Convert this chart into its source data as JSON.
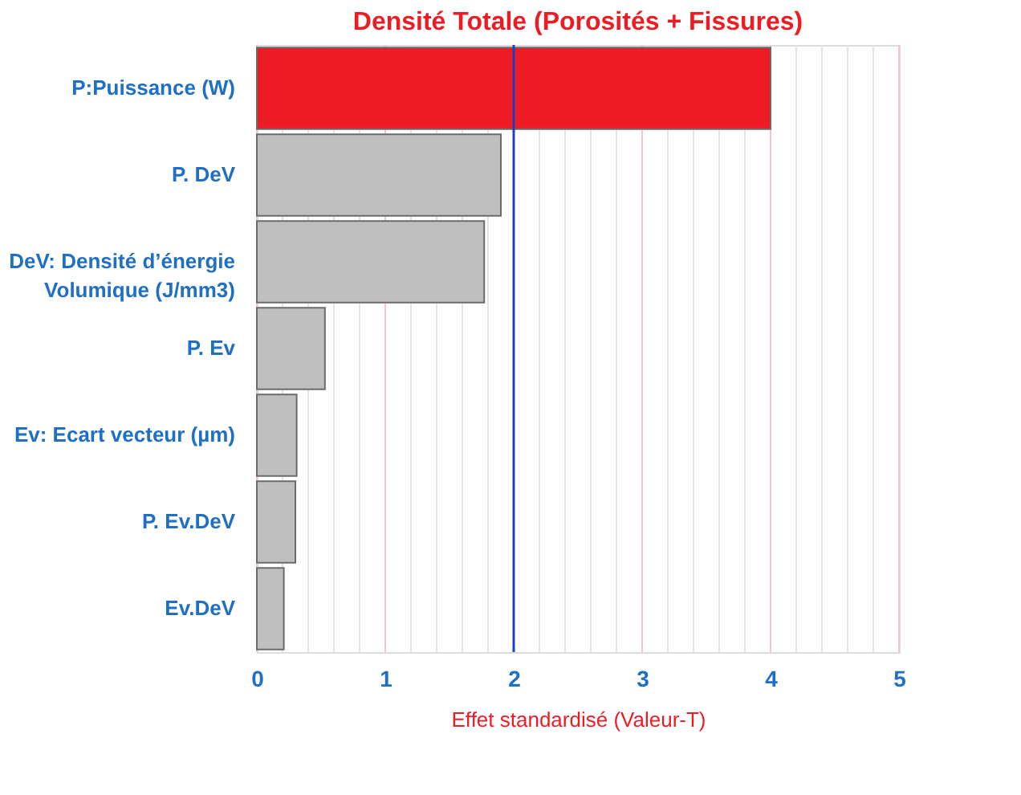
{
  "chart_data": {
    "type": "bar",
    "orientation": "horizontal",
    "title": "Densité Totale (Porosités + Fissures)",
    "xlabel": "Effet standardisé (Valeur-T)",
    "categories": [
      "P:Puissance (W)",
      "P. DeV",
      "DeV: Densité d’énergie\nVolumique (J/mm3)",
      "P. Ev",
      "Ev: Ecart vecteur (µm)",
      "P. Ev.DeV",
      "Ev.DeV"
    ],
    "values": [
      4.0,
      1.9,
      1.77,
      0.53,
      0.31,
      0.3,
      0.21
    ],
    "colors": [
      "#ed1c24",
      "#bfbfbf",
      "#bfbfbf",
      "#bfbfbf",
      "#bfbfbf",
      "#bfbfbf",
      "#bfbfbf"
    ],
    "xlim": [
      0,
      5
    ],
    "xticks": [
      0,
      {
        "value": 0.2,
        "label": null
      },
      {
        "value": 0.4,
        "label": null
      },
      {
        "value": 0.6,
        "label": null
      },
      {
        "value": 0.8,
        "label": null
      },
      1,
      {
        "value": 1.2,
        "label": null
      },
      {
        "value": 1.4,
        "label": null
      },
      {
        "value": 1.6,
        "label": null
      },
      {
        "value": 1.8,
        "label": null
      },
      2,
      {
        "value": 2.2,
        "label": null
      },
      {
        "value": 2.4,
        "label": null
      },
      {
        "value": 2.6,
        "label": null
      },
      {
        "value": 2.8,
        "label": null
      },
      3,
      {
        "value": 3.2,
        "label": null
      },
      {
        "value": 3.4,
        "label": null
      },
      {
        "value": 3.6,
        "label": null
      },
      {
        "value": 3.8,
        "label": null
      },
      4,
      {
        "value": 4.2,
        "label": null
      },
      {
        "value": 4.4,
        "label": null
      },
      {
        "value": 4.6,
        "label": null
      },
      {
        "value": 4.8,
        "label": null
      },
      5
    ],
    "grid": "x",
    "ref_lines": [
      {
        "axis": "x",
        "value": 2,
        "color": "#1f3fbf"
      }
    ]
  }
}
